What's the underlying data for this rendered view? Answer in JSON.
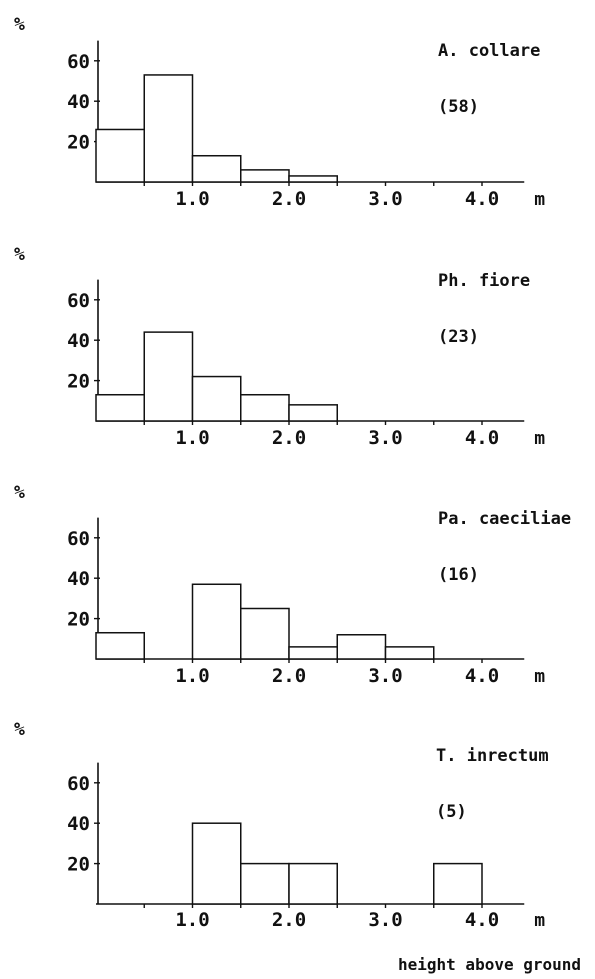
{
  "chart_data": [
    {
      "type": "bar",
      "species": "A. collare",
      "count_label": "(58)",
      "y_unit": "%",
      "x_unit": "m",
      "bin_width": 0.5,
      "bin_starts": [
        0.0,
        0.5,
        1.0,
        1.5,
        2.0,
        2.5,
        3.0,
        3.5
      ],
      "values": [
        26,
        53,
        13,
        6,
        3,
        0,
        0,
        0
      ],
      "xticks": [
        1.0,
        2.0,
        3.0,
        4.0
      ],
      "xtick_labels": [
        "1.0",
        "2.0",
        "3.0",
        "4.0"
      ],
      "yticks": [
        20,
        40,
        60
      ],
      "ytick_labels": [
        "20",
        "40",
        "60"
      ],
      "xlim": [
        0,
        4.5
      ],
      "ylim": [
        0,
        70
      ]
    },
    {
      "type": "bar",
      "species": "Ph. fiore",
      "count_label": "(23)",
      "y_unit": "%",
      "x_unit": "m",
      "bin_width": 0.5,
      "bin_starts": [
        0.0,
        0.5,
        1.0,
        1.5,
        2.0,
        2.5,
        3.0,
        3.5
      ],
      "values": [
        13,
        44,
        22,
        13,
        8,
        0,
        0,
        0
      ],
      "xticks": [
        1.0,
        2.0,
        3.0,
        4.0
      ],
      "xtick_labels": [
        "1.0",
        "2.0",
        "3.0",
        "4.0"
      ],
      "yticks": [
        20,
        40,
        60
      ],
      "ytick_labels": [
        "20",
        "40",
        "60"
      ],
      "xlim": [
        0,
        4.5
      ],
      "ylim": [
        0,
        70
      ]
    },
    {
      "type": "bar",
      "species": "Pa. caeciliae",
      "count_label": "(16)",
      "y_unit": "%",
      "x_unit": "m",
      "bin_width": 0.5,
      "bin_starts": [
        0.0,
        0.5,
        1.0,
        1.5,
        2.0,
        2.5,
        3.0,
        3.5
      ],
      "values": [
        13,
        0,
        37,
        25,
        6,
        12,
        6,
        0
      ],
      "xticks": [
        1.0,
        2.0,
        3.0,
        4.0
      ],
      "xtick_labels": [
        "1.0",
        "2.0",
        "3.0",
        "4.0"
      ],
      "yticks": [
        20,
        40,
        60
      ],
      "ytick_labels": [
        "20",
        "40",
        "60"
      ],
      "xlim": [
        0,
        4.5
      ],
      "ylim": [
        0,
        70
      ]
    },
    {
      "type": "bar",
      "species": "T. inrectum",
      "count_label": "(5)",
      "y_unit": "%",
      "x_unit": "m",
      "bin_width": 0.5,
      "bin_starts": [
        0.0,
        0.5,
        1.0,
        1.5,
        2.0,
        2.5,
        3.0,
        3.5
      ],
      "values": [
        0,
        0,
        40,
        20,
        20,
        0,
        0,
        20
      ],
      "xticks": [
        1.0,
        2.0,
        3.0,
        4.0
      ],
      "xtick_labels": [
        "1.0",
        "2.0",
        "3.0",
        "4.0"
      ],
      "yticks": [
        20,
        40,
        60
      ],
      "ytick_labels": [
        "20",
        "40",
        "60"
      ],
      "xlim": [
        0,
        4.5
      ],
      "ylim": [
        0,
        70
      ]
    }
  ],
  "footer": {
    "x_axis_title": "height above ground"
  }
}
